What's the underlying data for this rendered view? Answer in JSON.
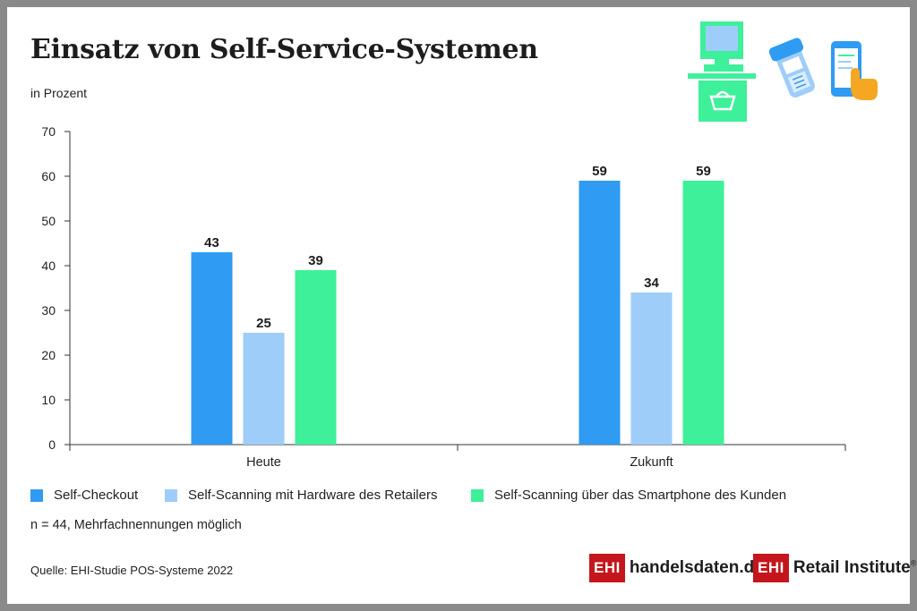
{
  "title": "Einsatz von Self-Service-Systemen",
  "unit_label": "in Prozent",
  "note": "n = 44, Mehrfachnennungen möglich",
  "source": "Quelle: EHI-Studie POS-Systeme 2022",
  "logos": {
    "left_box": "EHI",
    "left_text": "handelsdaten.de",
    "right_box": "EHI",
    "right_text": "Retail Institute",
    "right_mark": "®"
  },
  "icons": [
    "self-checkout-terminal-icon",
    "handheld-scanner-icon",
    "smartphone-touch-icon"
  ],
  "colors": {
    "self_checkout": "#2f9bf2",
    "hardware": "#9ecdfa",
    "smartphone": "#3ef09a",
    "brand_red": "#c4161c"
  },
  "chart_data": {
    "type": "bar",
    "categories": [
      "Heute",
      "Zukunft"
    ],
    "series": [
      {
        "name": "Self-Checkout",
        "values": [
          43,
          59
        ],
        "color": "#2f9bf2"
      },
      {
        "name": "Self-Scanning mit Hardware des Retailers",
        "values": [
          25,
          34
        ],
        "color": "#9ecdfa"
      },
      {
        "name": "Self-Scanning über das Smartphone des Kunden",
        "values": [
          39,
          59
        ],
        "color": "#3ef09a"
      }
    ],
    "yticks": [
      0,
      10,
      20,
      30,
      40,
      50,
      60,
      70
    ],
    "ylim": [
      0,
      70
    ],
    "grid": false,
    "legend_position": "bottom",
    "data_labels": true
  }
}
